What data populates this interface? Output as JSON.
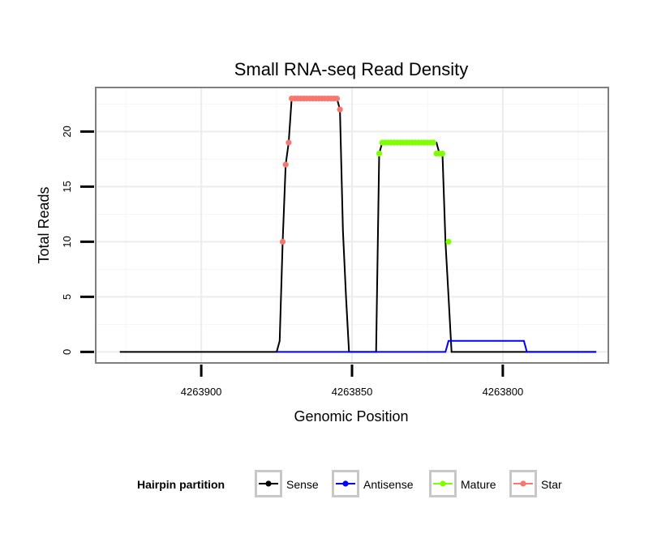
{
  "chart_data": {
    "type": "line",
    "title": "Small RNA-seq Read Density",
    "xlabel": "Genomic Position",
    "ylabel": "Total Reads",
    "x_reversed": true,
    "xlim": [
      4263935,
      4263765
    ],
    "ylim": [
      -1,
      24
    ],
    "x_ticks": [
      4263900,
      4263850,
      4263800
    ],
    "x_tick_labels": [
      "4263900",
      "4263850",
      "4263800"
    ],
    "y_ticks": [
      0,
      5,
      10,
      15,
      20
    ],
    "y_tick_labels": [
      "0",
      "5",
      "10",
      "15",
      "20"
    ],
    "grid": true,
    "legend": {
      "title": "Hairpin partition",
      "position": "bottom",
      "entries": [
        {
          "name": "Sense",
          "color": "#000000"
        },
        {
          "name": "Antisense",
          "color": "#0000FF"
        },
        {
          "name": "Mature",
          "color": "#7FFF00"
        },
        {
          "name": "Star",
          "color": "#F8766D"
        }
      ]
    },
    "series": [
      {
        "name": "Sense",
        "color": "#000000",
        "x": [
          4263927,
          4263875,
          4263874,
          4263873,
          4263872,
          4263871,
          4263870,
          4263869,
          4263868,
          4263867,
          4263866,
          4263865,
          4263864,
          4263863,
          4263862,
          4263861,
          4263860,
          4263859,
          4263858,
          4263857,
          4263856,
          4263855,
          4263854,
          4263853,
          4263852,
          4263851,
          4263850,
          4263849,
          4263848,
          4263847,
          4263846,
          4263845,
          4263844,
          4263843,
          4263842,
          4263841,
          4263840,
          4263839,
          4263838,
          4263837,
          4263836,
          4263835,
          4263834,
          4263833,
          4263832,
          4263831,
          4263830,
          4263829,
          4263828,
          4263827,
          4263826,
          4263825,
          4263824,
          4263823,
          4263822,
          4263821,
          4263820,
          4263819,
          4263818,
          4263817,
          4263769
        ],
        "y": [
          0,
          0,
          1,
          10,
          17,
          19,
          23,
          23,
          23,
          23,
          23,
          23,
          23,
          23,
          23,
          23,
          23,
          23,
          23,
          23,
          23,
          23,
          22,
          11,
          5,
          0,
          0,
          0,
          0,
          0,
          0,
          0,
          0,
          0,
          0,
          18,
          19,
          19,
          19,
          19,
          19,
          19,
          19,
          19,
          19,
          19,
          19,
          19,
          19,
          19,
          19,
          19,
          19,
          19,
          19,
          18,
          18,
          10,
          5,
          0,
          0
        ]
      },
      {
        "name": "Antisense",
        "color": "#0000FF",
        "x": [
          4263875,
          4263819,
          4263818,
          4263808,
          4263793,
          4263792,
          4263769
        ],
        "y": [
          0,
          0,
          1,
          1,
          1,
          0,
          0
        ]
      },
      {
        "name": "Mature",
        "color": "#7FFF00",
        "x": [
          4263841,
          4263840,
          4263839,
          4263838,
          4263837,
          4263836,
          4263835,
          4263834,
          4263833,
          4263832,
          4263831,
          4263830,
          4263829,
          4263828,
          4263827,
          4263826,
          4263825,
          4263824,
          4263823,
          4263822,
          4263821,
          4263820,
          4263818
        ],
        "y": [
          18,
          19,
          19,
          19,
          19,
          19,
          19,
          19,
          19,
          19,
          19,
          19,
          19,
          19,
          19,
          19,
          19,
          19,
          19,
          18,
          18,
          18,
          10
        ]
      },
      {
        "name": "Star",
        "color": "#F8766D",
        "x": [
          4263873,
          4263872,
          4263871,
          4263870,
          4263869,
          4263868,
          4263867,
          4263866,
          4263865,
          4263864,
          4263863,
          4263862,
          4263861,
          4263860,
          4263859,
          4263858,
          4263857,
          4263856,
          4263855,
          4263854
        ],
        "y": [
          10,
          17,
          19,
          23,
          23,
          23,
          23,
          23,
          23,
          23,
          23,
          23,
          23,
          23,
          23,
          23,
          23,
          23,
          23,
          22
        ]
      }
    ]
  }
}
